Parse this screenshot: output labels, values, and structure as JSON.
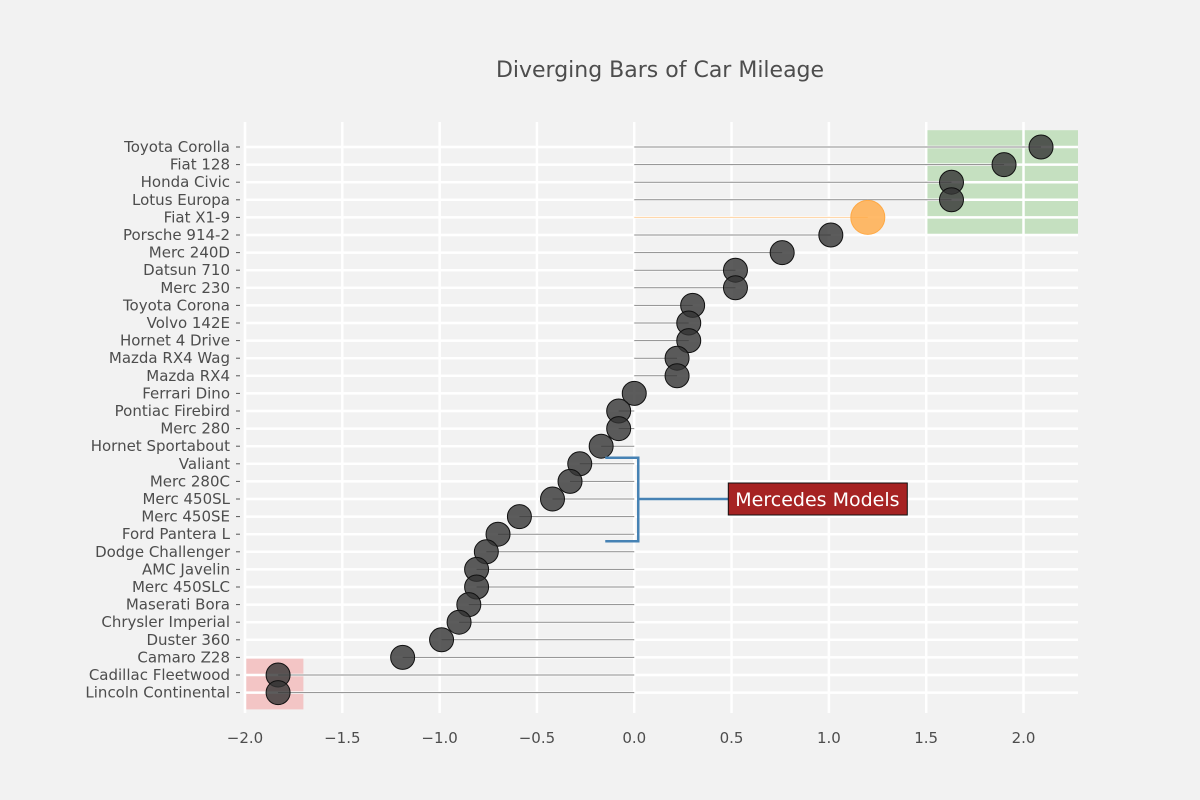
{
  "chart_data": {
    "type": "scatter",
    "title": "Diverging Bars of Car Mileage",
    "xlabel": "",
    "ylabel": "",
    "xlim": [
      -2.0,
      2.28
    ],
    "xticks": [
      -2.0,
      -1.5,
      -1.0,
      -0.5,
      0.0,
      0.5,
      1.0,
      1.5,
      2.0
    ],
    "xtick_labels": [
      "−2.0",
      "−1.5",
      "−1.0",
      "−0.5",
      "0.0",
      "0.5",
      "1.0",
      "1.5",
      "2.0"
    ],
    "grid": true,
    "categories": [
      "Toyota Corolla",
      "Fiat 128",
      "Honda Civic",
      "Lotus Europa",
      "Fiat X1-9",
      "Porsche 914-2",
      "Merc 240D",
      "Datsun 710",
      "Merc 230",
      "Toyota Corona",
      "Volvo 142E",
      "Hornet 4 Drive",
      "Mazda RX4 Wag",
      "Mazda RX4",
      "Ferrari Dino",
      "Pontiac Firebird",
      "Merc 280",
      "Hornet Sportabout",
      "Valiant",
      "Merc 280C",
      "Merc 450SL",
      "Merc 450SE",
      "Ford Pantera L",
      "Dodge Challenger",
      "AMC Javelin",
      "Merc 450SLC",
      "Maserati Bora",
      "Chrysler Imperial",
      "Duster 360",
      "Camaro Z28",
      "Cadillac Fleetwood",
      "Lincoln Continental"
    ],
    "values": [
      2.09,
      1.9,
      1.63,
      1.63,
      1.2,
      1.01,
      0.76,
      0.52,
      0.52,
      0.3,
      0.28,
      0.28,
      0.22,
      0.22,
      0.0,
      -0.08,
      -0.08,
      -0.17,
      -0.28,
      -0.33,
      -0.42,
      -0.59,
      -0.7,
      -0.76,
      -0.81,
      -0.81,
      -0.85,
      -0.9,
      -0.99,
      -1.19,
      -1.83,
      -1.83
    ],
    "highlight": {
      "category": "Fiat X1-9",
      "color": "#ffa944"
    },
    "point_color": "#333333",
    "shaded_regions": [
      {
        "x_range": [
          1.5,
          2.28
        ],
        "y_range": [
          "Toyota Corolla",
          "Fiat X1-9"
        ],
        "color": "#a6d49f"
      },
      {
        "x_range": [
          -2.0,
          -1.7
        ],
        "y_range": [
          "Cadillac Fleetwood",
          "Lincoln Continental"
        ],
        "color": "#f4a6a6"
      }
    ],
    "annotation": {
      "text": "Mercedes Models",
      "bracket_from": "Valiant",
      "bracket_to": "Ford Pantera L",
      "bracket_x": 0.0,
      "text_x": 0.55,
      "text_y": "Merc 450SL",
      "box_color": "#a62323",
      "bracket_color": "#4682b4"
    }
  }
}
